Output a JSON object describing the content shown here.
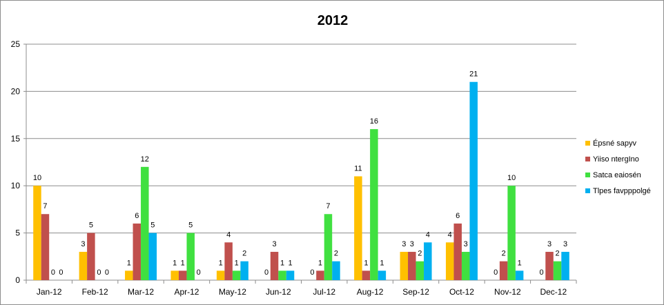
{
  "chart_data": {
    "type": "bar",
    "title": "2012",
    "xlabel": "",
    "ylabel": "",
    "ylim": [
      0,
      25
    ],
    "yticks": [
      0,
      5,
      10,
      15,
      20,
      25
    ],
    "grid": true,
    "legend_position": "right",
    "categories": [
      "Jan-12",
      "Feb-12",
      "Mar-12",
      "Apr-12",
      "May-12",
      "Jun-12",
      "Jul-12",
      "Aug-12",
      "Sep-12",
      "Oct-12",
      "Nov-12",
      "Dec-12"
    ],
    "series": [
      {
        "name": "Épsné sapyv",
        "color": "#ffc000",
        "values": [
          10,
          3,
          1,
          1,
          1,
          0,
          0,
          11,
          3,
          4,
          0,
          0
        ]
      },
      {
        "name": "Yiiso ntergIno",
        "color": "#c0504d",
        "values": [
          7,
          5,
          6,
          1,
          4,
          3,
          1,
          1,
          3,
          6,
          2,
          3
        ]
      },
      {
        "name": "Satca eaiosén",
        "color": "#40e040",
        "values": [
          0,
          0,
          12,
          5,
          1,
          1,
          7,
          16,
          2,
          3,
          10,
          2
        ]
      },
      {
        "name": "Tlpes favpppolgé",
        "color": "#00b0f0",
        "values": [
          0,
          0,
          5,
          0,
          2,
          1,
          2,
          1,
          4,
          21,
          1,
          3
        ]
      }
    ]
  }
}
